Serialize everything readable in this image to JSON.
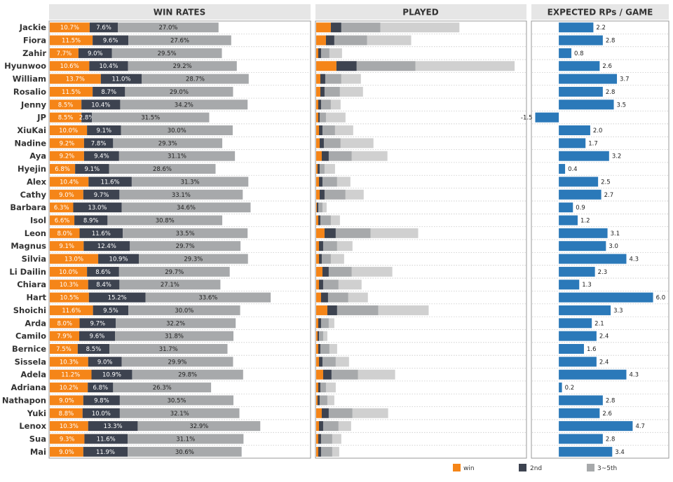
{
  "colors": {
    "win": "#f58518",
    "second": "#3d4350",
    "rest": "#a7a9ab",
    "played_rest": "#d0d0d0",
    "rp": "#2b79b9",
    "header_bg": "#e6e6e6"
  },
  "headers": {
    "win_rates": "WIN RATES",
    "played": "PLAYED",
    "rp": "EXPECTED RPs / GAME"
  },
  "legend": [
    {
      "key": "win",
      "label": "win"
    },
    {
      "key": "second",
      "label": "2nd"
    },
    {
      "key": "rest",
      "label": "3~5th"
    }
  ],
  "chart_data": [
    {
      "type": "bar",
      "stacked": true,
      "orientation": "horizontal",
      "title": "WIN RATES",
      "categories": [
        "Jackie",
        "Fiora",
        "Zahir",
        "Hyunwoo",
        "William",
        "Rosalio",
        "Jenny",
        "JP",
        "XiuKai",
        "Nadine",
        "Aya",
        "Hyejin",
        "Alex",
        "Cathy",
        "Barbara",
        "Isol",
        "Leon",
        "Magnus",
        "Silvia",
        "Li Dailin",
        "Chiara",
        "Hart",
        "Shoichi",
        "Arda",
        "Camilo",
        "Bernice",
        "Sissela",
        "Adela",
        "Adriana",
        "Nathapon",
        "Yuki",
        "Lenox",
        "Sua",
        "Mai"
      ],
      "series": [
        {
          "name": "win",
          "values": [
            10.7,
            11.5,
            7.7,
            10.6,
            13.7,
            11.5,
            8.5,
            8.5,
            10.0,
            9.2,
            9.2,
            6.8,
            10.4,
            9.0,
            6.3,
            6.6,
            8.0,
            9.1,
            13.0,
            10.0,
            10.3,
            10.5,
            11.6,
            8.0,
            7.9,
            7.5,
            10.3,
            11.2,
            10.2,
            9.0,
            8.8,
            10.3,
            9.3,
            9.0
          ]
        },
        {
          "name": "2nd",
          "values": [
            7.6,
            9.6,
            9.0,
            10.4,
            11.0,
            8.7,
            10.4,
            2.8,
            9.1,
            7.8,
            9.4,
            9.1,
            11.6,
            9.7,
            13.0,
            8.9,
            11.6,
            12.4,
            10.9,
            8.6,
            8.4,
            15.2,
            9.5,
            9.7,
            9.6,
            8.5,
            9.0,
            10.9,
            6.8,
            9.8,
            10.0,
            13.3,
            11.6,
            11.9
          ]
        },
        {
          "name": "3~5th",
          "values": [
            27.0,
            27.6,
            29.5,
            29.2,
            28.7,
            29.0,
            34.2,
            31.5,
            30.0,
            29.3,
            31.1,
            28.6,
            31.3,
            33.1,
            34.6,
            30.8,
            33.5,
            29.7,
            29.3,
            29.7,
            27.1,
            33.6,
            30.0,
            32.2,
            31.8,
            31.7,
            29.9,
            29.8,
            26.3,
            30.5,
            32.1,
            32.9,
            31.1,
            30.6
          ]
        }
      ],
      "labels": {
        "win": [
          "10.7%",
          "11.5%",
          "7.7%",
          "10.6%",
          "13.7%",
          "11.5%",
          "8.5%",
          "8.5%",
          "10.0%",
          "9.2%",
          "9.2%",
          "6.8%",
          "10.4%",
          "9.0%",
          "6.3%",
          "6.6%",
          "8.0%",
          "9.1%",
          "13.0%",
          "10.0%",
          "10.3%",
          "10.5%",
          "11.6%",
          "8.0%",
          "7.9%",
          "7.5%",
          "10.3%",
          "11.2%",
          "10.2%",
          "9.0%",
          "8.8%",
          "10.3%",
          "9.3%",
          "9.0%"
        ],
        "second": [
          "7.6%",
          "9.6%",
          "9.0%",
          "10.4%",
          "11.0%",
          "8.7%",
          "10.4%",
          "2.8%",
          "9.1%",
          "7.8%",
          "9.4%",
          "9.1%",
          "11.6%",
          "9.7%",
          "13.0%",
          "8.9%",
          "11.6%",
          "12.4%",
          "10.9%",
          "8.6%",
          "8.4%",
          "15.2%",
          "9.5%",
          "9.7%",
          "9.6%",
          "8.5%",
          "9.0%",
          "10.9%",
          "6.8%",
          "9.8%",
          "10.0%",
          "13.3%",
          "11.6%",
          "11.9%"
        ],
        "rest": [
          "27.0%",
          "27.6%",
          "29.5%",
          "29.2%",
          "28.7%",
          "29.0%",
          "34.2%",
          "31.5%",
          "30.0%",
          "29.3%",
          "31.1%",
          "28.6%",
          "31.3%",
          "33.1%",
          "34.6%",
          "30.8%",
          "33.5%",
          "29.7%",
          "29.3%",
          "29.7%",
          "27.1%",
          "33.6%",
          "30.0%",
          "32.2%",
          "31.8%",
          "31.7%",
          "29.9%",
          "29.8%",
          "26.3%",
          "30.5%",
          "32.1%",
          "32.9%",
          "31.1%",
          "30.6%"
        ]
      },
      "xlim": [
        0,
        70
      ]
    },
    {
      "type": "bar",
      "stacked": true,
      "orientation": "horizontal",
      "title": "PLAYED",
      "series": [
        {
          "name": "win",
          "values": [
            21,
            14,
            3,
            29,
            6,
            6,
            3,
            3,
            4,
            5,
            8,
            2,
            4,
            5,
            1,
            3,
            12,
            4,
            4,
            9,
            4,
            7,
            16,
            3,
            2,
            3,
            4,
            10,
            3,
            2,
            8,
            4,
            3,
            3
          ]
        },
        {
          "name": "2nd",
          "values": [
            15,
            12,
            4,
            29,
            7,
            6,
            4,
            2,
            5,
            6,
            10,
            3,
            5,
            7,
            2,
            3,
            16,
            6,
            4,
            9,
            6,
            10,
            14,
            4,
            2,
            3,
            5,
            12,
            3,
            3,
            10,
            6,
            4,
            4
          ]
        },
        {
          "name": "3~5th",
          "values": [
            56,
            47,
            12,
            84,
            23,
            22,
            14,
            9,
            18,
            24,
            33,
            7,
            21,
            30,
            6,
            15,
            50,
            20,
            13,
            33,
            22,
            29,
            59,
            11,
            6,
            13,
            19,
            38,
            8,
            11,
            34,
            22,
            16,
            16
          ]
        },
        {
          "name": "rest-light",
          "values": [
            113,
            63,
            18,
            142,
            28,
            33,
            14,
            28,
            26,
            47,
            51,
            15,
            19,
            26,
            6,
            13,
            68,
            22,
            19,
            58,
            33,
            28,
            72,
            8,
            6,
            11,
            19,
            53,
            14,
            10,
            51,
            18,
            13,
            10
          ]
        }
      ],
      "xlim": [
        0,
        300
      ]
    },
    {
      "type": "bar",
      "orientation": "horizontal",
      "title": "EXPECTED RPs / GAME",
      "values": [
        2.2,
        2.8,
        0.8,
        2.6,
        3.7,
        2.8,
        3.5,
        -1.5,
        2.0,
        1.7,
        3.2,
        0.4,
        2.5,
        2.7,
        0.9,
        1.2,
        3.1,
        3.0,
        4.3,
        2.3,
        1.3,
        6.0,
        3.3,
        2.1,
        2.4,
        1.6,
        2.4,
        4.3,
        0.2,
        2.8,
        2.6,
        4.7,
        2.8,
        3.4
      ],
      "labels": [
        "2.2",
        "2.8",
        "0.8",
        "2.6",
        "3.7",
        "2.8",
        "3.5",
        "-1.5",
        "2.0",
        "1.7",
        "3.2",
        "0.4",
        "2.5",
        "2.7",
        "0.9",
        "1.2",
        "3.1",
        "3.0",
        "4.3",
        "2.3",
        "1.3",
        "6.0",
        "3.3",
        "2.1",
        "2.4",
        "1.6",
        "2.4",
        "4.3",
        "0.2",
        "2.8",
        "2.6",
        "4.7",
        "2.8",
        "3.4"
      ],
      "xlim": [
        -1.7,
        7.0
      ]
    }
  ]
}
